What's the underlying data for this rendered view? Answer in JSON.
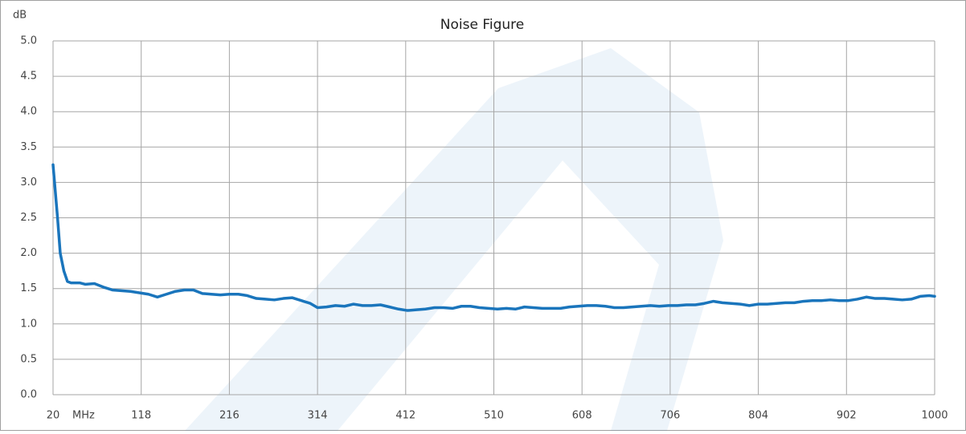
{
  "chart_data": {
    "type": "line",
    "title": "Noise Figure",
    "ylabel": "dB",
    "xlabel": "MHz",
    "x": [
      20,
      25,
      28,
      32,
      36,
      40,
      50,
      56,
      66,
      76,
      86,
      96,
      106,
      116,
      126,
      136,
      146,
      156,
      166,
      176,
      186,
      196,
      206,
      216,
      226,
      236,
      246,
      256,
      266,
      276,
      286,
      296,
      306,
      314,
      324,
      334,
      344,
      354,
      364,
      374,
      384,
      394,
      404,
      414,
      424,
      434,
      444,
      454,
      464,
      474,
      484,
      494,
      504,
      514,
      524,
      534,
      544,
      554,
      564,
      574,
      584,
      594,
      604,
      614,
      624,
      634,
      644,
      654,
      664,
      674,
      684,
      694,
      704,
      714,
      724,
      734,
      744,
      754,
      764,
      774,
      784,
      794,
      804,
      814,
      824,
      834,
      844,
      854,
      864,
      874,
      884,
      894,
      904,
      914,
      924,
      934,
      944,
      954,
      964,
      974,
      984,
      994,
      1000
    ],
    "series": [
      {
        "name": "Noise Figure",
        "color": "#1a75bc",
        "values": [
          3.25,
          2.5,
          2.0,
          1.75,
          1.6,
          1.58,
          1.58,
          1.56,
          1.57,
          1.52,
          1.48,
          1.47,
          1.46,
          1.44,
          1.42,
          1.38,
          1.42,
          1.46,
          1.48,
          1.48,
          1.43,
          1.42,
          1.41,
          1.42,
          1.42,
          1.4,
          1.36,
          1.35,
          1.34,
          1.36,
          1.37,
          1.33,
          1.29,
          1.23,
          1.24,
          1.26,
          1.25,
          1.28,
          1.26,
          1.26,
          1.27,
          1.24,
          1.21,
          1.19,
          1.2,
          1.21,
          1.23,
          1.23,
          1.22,
          1.25,
          1.25,
          1.23,
          1.22,
          1.21,
          1.22,
          1.21,
          1.24,
          1.23,
          1.22,
          1.22,
          1.22,
          1.24,
          1.25,
          1.26,
          1.26,
          1.25,
          1.23,
          1.23,
          1.24,
          1.25,
          1.26,
          1.25,
          1.26,
          1.26,
          1.27,
          1.27,
          1.29,
          1.32,
          1.3,
          1.29,
          1.28,
          1.26,
          1.28,
          1.28,
          1.29,
          1.3,
          1.3,
          1.32,
          1.33,
          1.33,
          1.34,
          1.33,
          1.33,
          1.35,
          1.38,
          1.36,
          1.36,
          1.35,
          1.34,
          1.35,
          1.39,
          1.4,
          1.39
        ]
      }
    ],
    "xlim": [
      20,
      1000
    ],
    "xticks": [
      20,
      118,
      216,
      314,
      412,
      510,
      608,
      706,
      804,
      902,
      1000
    ],
    "ylim": [
      0,
      5
    ],
    "yticks": [
      {
        "value": 0,
        "label": "0.0"
      },
      0.5,
      {
        "value": 1,
        "label": "1.0"
      },
      1.5,
      {
        "value": 2,
        "label": "2.0"
      },
      2.5,
      {
        "value": 3,
        "label": "3.0"
      },
      3.5,
      {
        "value": 4,
        "label": "4.0"
      },
      4.5,
      {
        "value": 5,
        "label": "5.0"
      }
    ],
    "grid": true
  }
}
